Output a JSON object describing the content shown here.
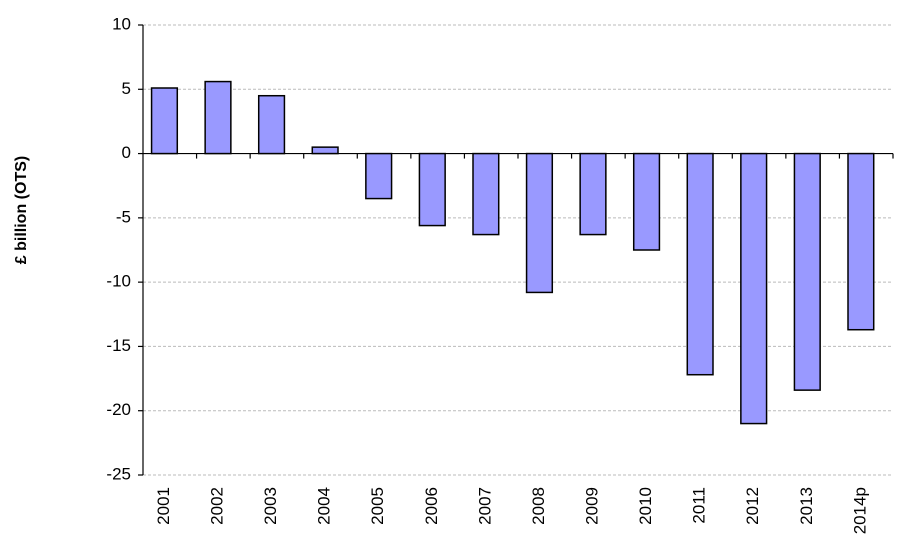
{
  "chart_data": {
    "type": "bar",
    "y_label": "£ billion (OTS)",
    "categories": [
      "2001",
      "2002",
      "2003",
      "2004",
      "2005",
      "2006",
      "2007",
      "2008",
      "2009",
      "2010",
      "2011",
      "2012",
      "2013",
      "2014p"
    ],
    "values": [
      5.1,
      5.6,
      4.5,
      0.5,
      -3.5,
      -5.6,
      -6.3,
      -10.8,
      -6.3,
      -7.5,
      -17.2,
      -21.0,
      -18.4,
      -13.7
    ],
    "color": "#9999ff",
    "ylim": [
      -25,
      10
    ],
    "yticks": [
      -25,
      -20,
      -15,
      -10,
      -5,
      0,
      5,
      10
    ],
    "grid": true
  }
}
